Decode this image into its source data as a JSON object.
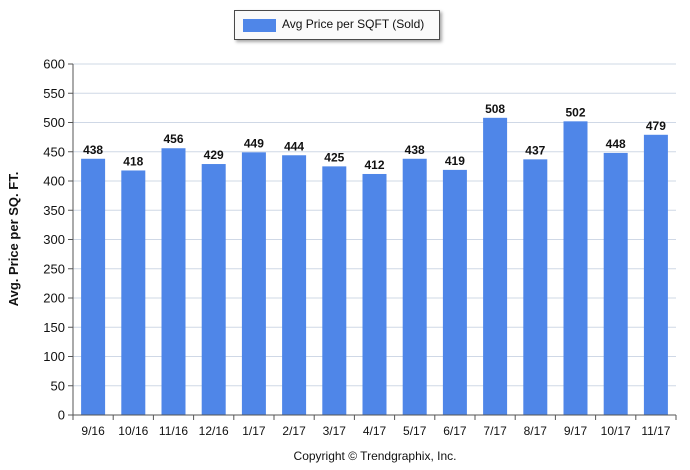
{
  "chart_data": {
    "type": "bar",
    "categories": [
      "9/16",
      "10/16",
      "11/16",
      "12/16",
      "1/17",
      "2/17",
      "3/17",
      "4/17",
      "5/17",
      "6/17",
      "7/17",
      "8/17",
      "9/17",
      "10/17",
      "11/17"
    ],
    "series": [
      {
        "name": "Avg Price per SQFT (Sold)",
        "values": [
          438,
          418,
          456,
          429,
          449,
          444,
          425,
          412,
          438,
          419,
          508,
          437,
          502,
          448,
          479
        ]
      }
    ],
    "title": "",
    "xlabel": "",
    "ylabel": "Avg. Price per SQ. FT.",
    "ylim": [
      0,
      600
    ],
    "yticks": [
      "0",
      "50",
      "100",
      "150",
      "200",
      "250",
      "300",
      "350",
      "400",
      "450",
      "500",
      "550",
      "600"
    ],
    "grid": true,
    "legend_position": "top-center",
    "data_labels": true,
    "bar_color": "#4f86e8"
  },
  "footer": {
    "copyright": "Copyright © Trendgraphix, Inc."
  }
}
